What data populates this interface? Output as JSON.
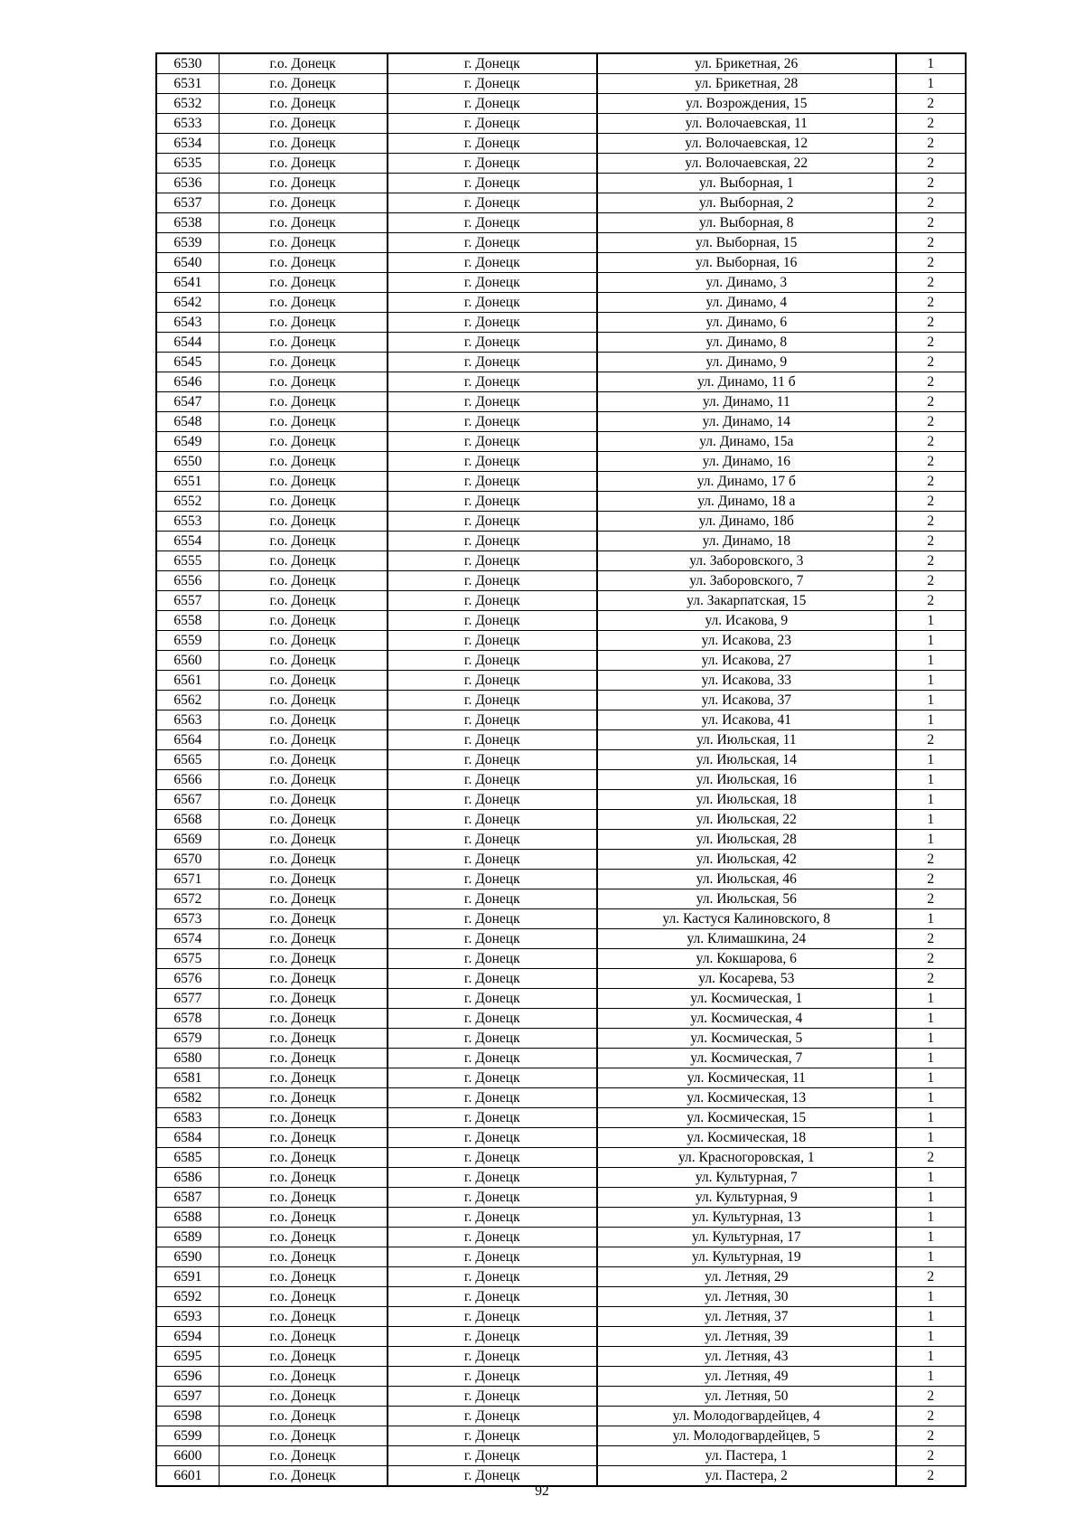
{
  "district": "г.о. Донецк",
  "city": "г. Донецк",
  "rows": [
    [
      "6530",
      "г.о. Донецк",
      "г. Донецк",
      "ул. Брикетная, 26",
      "1"
    ],
    [
      "6531",
      "г.о. Донецк",
      "г. Донецк",
      "ул. Брикетная, 28",
      "1"
    ],
    [
      "6532",
      "г.о. Донецк",
      "г. Донецк",
      "ул. Возрождения, 15",
      "2"
    ],
    [
      "6533",
      "г.о. Донецк",
      "г. Донецк",
      "ул. Волочаевская, 11",
      "2"
    ],
    [
      "6534",
      "г.о. Донецк",
      "г. Донецк",
      "ул. Волочаевская, 12",
      "2"
    ],
    [
      "6535",
      "г.о. Донецк",
      "г. Донецк",
      "ул. Волочаевская, 22",
      "2"
    ],
    [
      "6536",
      "г.о. Донецк",
      "г. Донецк",
      "ул. Выборная, 1",
      "2"
    ],
    [
      "6537",
      "г.о. Донецк",
      "г. Донецк",
      "ул. Выборная, 2",
      "2"
    ],
    [
      "6538",
      "г.о. Донецк",
      "г. Донецк",
      "ул. Выборная, 8",
      "2"
    ],
    [
      "6539",
      "г.о. Донецк",
      "г. Донецк",
      "ул. Выборная, 15",
      "2"
    ],
    [
      "6540",
      "г.о. Донецк",
      "г. Донецк",
      "ул. Выборная, 16",
      "2"
    ],
    [
      "6541",
      "г.о. Донецк",
      "г. Донецк",
      "ул. Динамо, 3",
      "2"
    ],
    [
      "6542",
      "г.о. Донецк",
      "г. Донецк",
      "ул. Динамо, 4",
      "2"
    ],
    [
      "6543",
      "г.о. Донецк",
      "г. Донецк",
      "ул. Динамо, 6",
      "2"
    ],
    [
      "6544",
      "г.о. Донецк",
      "г. Донецк",
      "ул. Динамо, 8",
      "2"
    ],
    [
      "6545",
      "г.о. Донецк",
      "г. Донецк",
      "ул. Динамо, 9",
      "2"
    ],
    [
      "6546",
      "г.о. Донецк",
      "г. Донецк",
      "ул. Динамо, 11 б",
      "2"
    ],
    [
      "6547",
      "г.о. Донецк",
      "г. Донецк",
      "ул. Динамо, 11",
      "2"
    ],
    [
      "6548",
      "г.о. Донецк",
      "г. Донецк",
      "ул. Динамо, 14",
      "2"
    ],
    [
      "6549",
      "г.о. Донецк",
      "г. Донецк",
      "ул. Динамо, 15а",
      "2"
    ],
    [
      "6550",
      "г.о. Донецк",
      "г. Донецк",
      "ул. Динамо, 16",
      "2"
    ],
    [
      "6551",
      "г.о. Донецк",
      "г. Донецк",
      "ул. Динамо, 17 б",
      "2"
    ],
    [
      "6552",
      "г.о. Донецк",
      "г. Донецк",
      "ул. Динамо, 18 а",
      "2"
    ],
    [
      "6553",
      "г.о. Донецк",
      "г. Донецк",
      "ул. Динамо, 18б",
      "2"
    ],
    [
      "6554",
      "г.о. Донецк",
      "г. Донецк",
      "ул. Динамо, 18",
      "2"
    ],
    [
      "6555",
      "г.о. Донецк",
      "г. Донецк",
      "ул. Заборовского, 3",
      "2"
    ],
    [
      "6556",
      "г.о. Донецк",
      "г. Донецк",
      "ул. Заборовского, 7",
      "2"
    ],
    [
      "6557",
      "г.о. Донецк",
      "г. Донецк",
      "ул. Закарпатская, 15",
      "2"
    ],
    [
      "6558",
      "г.о. Донецк",
      "г. Донецк",
      "ул. Исакова, 9",
      "1"
    ],
    [
      "6559",
      "г.о. Донецк",
      "г. Донецк",
      "ул. Исакова, 23",
      "1"
    ],
    [
      "6560",
      "г.о. Донецк",
      "г. Донецк",
      "ул. Исакова, 27",
      "1"
    ],
    [
      "6561",
      "г.о. Донецк",
      "г. Донецк",
      "ул. Исакова, 33",
      "1"
    ],
    [
      "6562",
      "г.о. Донецк",
      "г. Донецк",
      "ул. Исакова, 37",
      "1"
    ],
    [
      "6563",
      "г.о. Донецк",
      "г. Донецк",
      "ул. Исакова, 41",
      "1"
    ],
    [
      "6564",
      "г.о. Донецк",
      "г. Донецк",
      "ул. Июльская, 11",
      "2"
    ],
    [
      "6565",
      "г.о. Донецк",
      "г. Донецк",
      "ул. Июльская, 14",
      "1"
    ],
    [
      "6566",
      "г.о. Донецк",
      "г. Донецк",
      "ул. Июльская, 16",
      "1"
    ],
    [
      "6567",
      "г.о. Донецк",
      "г. Донецк",
      "ул. Июльская, 18",
      "1"
    ],
    [
      "6568",
      "г.о. Донецк",
      "г. Донецк",
      "ул. Июльская, 22",
      "1"
    ],
    [
      "6569",
      "г.о. Донецк",
      "г. Донецк",
      "ул. Июльская, 28",
      "1"
    ],
    [
      "6570",
      "г.о. Донецк",
      "г. Донецк",
      "ул. Июльская, 42",
      "2"
    ],
    [
      "6571",
      "г.о. Донецк",
      "г. Донецк",
      "ул. Июльская, 46",
      "2"
    ],
    [
      "6572",
      "г.о. Донецк",
      "г. Донецк",
      "ул. Июльская, 56",
      "2"
    ],
    [
      "6573",
      "г.о. Донецк",
      "г. Донецк",
      "ул. Кастуся Калиновского, 8",
      "1"
    ],
    [
      "6574",
      "г.о. Донецк",
      "г. Донецк",
      "ул. Климашкина, 24",
      "2"
    ],
    [
      "6575",
      "г.о. Донецк",
      "г. Донецк",
      "ул. Кокшарова, 6",
      "2"
    ],
    [
      "6576",
      "г.о. Донецк",
      "г. Донецк",
      "ул. Косарева, 53",
      "2"
    ],
    [
      "6577",
      "г.о. Донецк",
      "г. Донецк",
      "ул. Космическая, 1",
      "1"
    ],
    [
      "6578",
      "г.о. Донецк",
      "г. Донецк",
      "ул. Космическая, 4",
      "1"
    ],
    [
      "6579",
      "г.о. Донецк",
      "г. Донецк",
      "ул. Космическая, 5",
      "1"
    ],
    [
      "6580",
      "г.о. Донецк",
      "г. Донецк",
      "ул. Космическая, 7",
      "1"
    ],
    [
      "6581",
      "г.о. Донецк",
      "г. Донецк",
      "ул. Космическая, 11",
      "1"
    ],
    [
      "6582",
      "г.о. Донецк",
      "г. Донецк",
      "ул. Космическая, 13",
      "1"
    ],
    [
      "6583",
      "г.о. Донецк",
      "г. Донецк",
      "ул. Космическая, 15",
      "1"
    ],
    [
      "6584",
      "г.о. Донецк",
      "г. Донецк",
      "ул. Космическая, 18",
      "1"
    ],
    [
      "6585",
      "г.о. Донецк",
      "г. Донецк",
      "ул. Красногоровская, 1",
      "2"
    ],
    [
      "6586",
      "г.о. Донецк",
      "г. Донецк",
      "ул. Культурная, 7",
      "1"
    ],
    [
      "6587",
      "г.о. Донецк",
      "г. Донецк",
      "ул. Культурная, 9",
      "1"
    ],
    [
      "6588",
      "г.о. Донецк",
      "г. Донецк",
      "ул. Культурная, 13",
      "1"
    ],
    [
      "6589",
      "г.о. Донецк",
      "г. Донецк",
      "ул. Культурная, 17",
      "1"
    ],
    [
      "6590",
      "г.о. Донецк",
      "г. Донецк",
      "ул. Культурная, 19",
      "1"
    ],
    [
      "6591",
      "г.о. Донецк",
      "г. Донецк",
      "ул. Летняя, 29",
      "2"
    ],
    [
      "6592",
      "г.о. Донецк",
      "г. Донецк",
      "ул. Летняя, 30",
      "1"
    ],
    [
      "6593",
      "г.о. Донецк",
      "г. Донецк",
      "ул. Летняя, 37",
      "1"
    ],
    [
      "6594",
      "г.о. Донецк",
      "г. Донецк",
      "ул. Летняя, 39",
      "1"
    ],
    [
      "6595",
      "г.о. Донецк",
      "г. Донецк",
      "ул. Летняя, 43",
      "1"
    ],
    [
      "6596",
      "г.о. Донецк",
      "г. Донецк",
      "ул. Летняя, 49",
      "1"
    ],
    [
      "6597",
      "г.о. Донецк",
      "г. Донецк",
      "ул. Летняя, 50",
      "2"
    ],
    [
      "6598",
      "г.о. Донецк",
      "г. Донецк",
      "ул. Молодогвардейцев, 4",
      "2"
    ],
    [
      "6599",
      "г.о. Донецк",
      "г. Донецк",
      "ул. Молодогвардейцев, 5",
      "2"
    ],
    [
      "6600",
      "г.о. Донецк",
      "г. Донецк",
      "ул. Пастера, 1",
      "2"
    ],
    [
      "6601",
      "г.о. Донецк",
      "г. Донецк",
      "ул. Пастера, 2",
      "2"
    ]
  ],
  "page_number": "92"
}
